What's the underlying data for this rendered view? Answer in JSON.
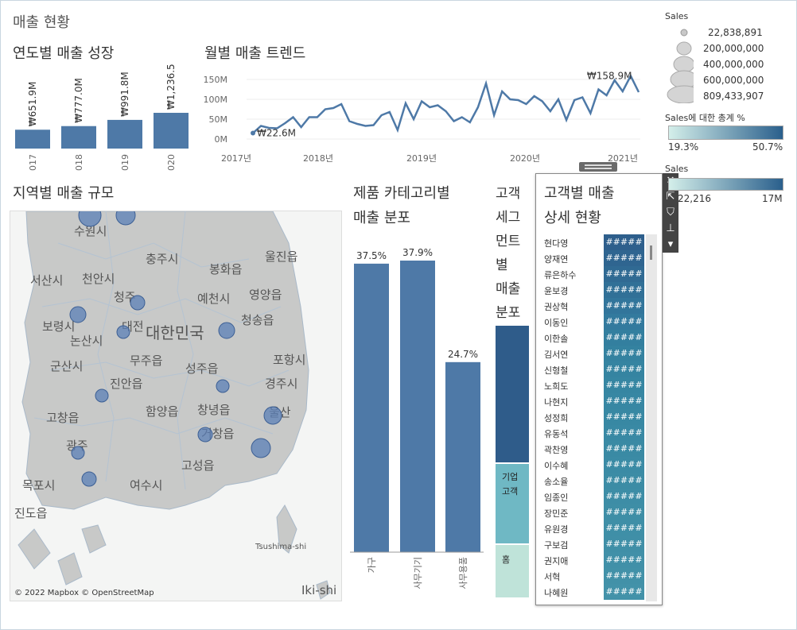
{
  "dashboard": {
    "title": "매출 현황"
  },
  "yearly": {
    "title": "연도별 매출 성장",
    "categories": [
      "017",
      "018",
      "019",
      "020"
    ],
    "values_m": [
      651.9,
      777.0,
      991.8,
      1236.5
    ],
    "labels": [
      "₩651.9M",
      "₩777.0M",
      "₩991.8M",
      "₩1,236.5M"
    ],
    "color": "#4e79a7"
  },
  "monthly": {
    "title": "월별 매출 트렌드",
    "y_ticks": [
      "150M",
      "100M",
      "50M",
      "0M"
    ],
    "x_ticks": [
      "2017년",
      "2018년",
      "2019년",
      "2020년",
      "2021년"
    ],
    "min_label": "₩22.6M",
    "max_label": "₩158.9M",
    "values_m": [
      15,
      33,
      28,
      27,
      40,
      55,
      30,
      55,
      55,
      75,
      78,
      88,
      45,
      38,
      33,
      35,
      60,
      68,
      22.6,
      90,
      50,
      95,
      80,
      85,
      70,
      45,
      55,
      42,
      80,
      140,
      60,
      120,
      100,
      98,
      88,
      108,
      95,
      70,
      100,
      48,
      98,
      105,
      65,
      125,
      110,
      148,
      120,
      158.9,
      118
    ],
    "color": "#4e79a7"
  },
  "map": {
    "title": "지역별 매출 규모",
    "labels": [
      "수원시",
      "충주시",
      "울진읍",
      "서산시",
      "천안시",
      "봉화읍",
      "영양읍",
      "청주",
      "보령시",
      "대한민국",
      "청송읍",
      "논산시",
      "대전",
      "예천시",
      "군산시",
      "무주읍",
      "성주읍",
      "포항시",
      "진안읍",
      "경주시",
      "함양읍",
      "창녕읍",
      "울산",
      "고창읍",
      "거창읍",
      "광주",
      "고성읍",
      "목포시",
      "여수시",
      "진도읍",
      "Tsushima-shi",
      "Iki-shi"
    ],
    "attribution": "© 2022 Mapbox © OpenStreetMap",
    "bubble_color": "#5b7fb7"
  },
  "category": {
    "title_line1": "제품 카테고리별",
    "title_line2": "매출 분포",
    "categories": [
      "가구",
      "사무기기",
      "사무용품"
    ],
    "percents": [
      37.5,
      37.9,
      24.7
    ],
    "labels": [
      "37.5%",
      "37.9%",
      "24.7%"
    ],
    "color": "#4e79a7"
  },
  "segment": {
    "title_chars": [
      "고객",
      "세그",
      "먼트",
      "별",
      "매출",
      "분포"
    ],
    "segments": [
      {
        "label": "",
        "color": "#2f5c8a"
      },
      {
        "label_lines": [
          "기업",
          "고객"
        ],
        "color": "#6fb8c4"
      },
      {
        "label": "홈",
        "color": "#bfe3d9"
      }
    ]
  },
  "customers": {
    "title_line1": "고객별 매출",
    "title_line2": "상세 현황",
    "masked": "#####",
    "names": [
      "현다영",
      "양재연",
      "류은하수",
      "윤보경",
      "권상혁",
      "이동인",
      "이한솔",
      "김서연",
      "신형철",
      "노희도",
      "나현지",
      "성정희",
      "유동석",
      "곽찬영",
      "이수혜",
      "송소율",
      "임종인",
      "장민준",
      "유원경",
      "구보검",
      "권지애",
      "서혁",
      "나혜원"
    ],
    "colors": [
      "#2e5f8c",
      "#2f6590",
      "#306a93",
      "#317097",
      "#32759b",
      "#337a9e",
      "#337f9f",
      "#3482a0",
      "#3584a1",
      "#3686a2",
      "#3787a3",
      "#3888a3",
      "#3989a4",
      "#3a8aa4",
      "#3b8ba5",
      "#3c8ca5",
      "#3d8da6",
      "#3e8ea6",
      "#3f8fa7",
      "#408fa7",
      "#4190a8",
      "#4291a8",
      "#4392a9"
    ]
  },
  "legends": {
    "size_title": "Sales",
    "size_values": [
      "22,838,891",
      "200,000,000",
      "400,000,000",
      "600,000,000",
      "809,433,907"
    ],
    "pct_title": "Sales에 대한 총계 %",
    "pct_min": "19.3%",
    "pct_max": "50.7%",
    "sales_title": "Sales",
    "sales_min": "22,216",
    "sales_max": "17M"
  },
  "toolbar": {
    "icons": [
      "close-icon",
      "open-icon",
      "filter-icon",
      "pin-icon",
      "dropdown-icon"
    ]
  }
}
